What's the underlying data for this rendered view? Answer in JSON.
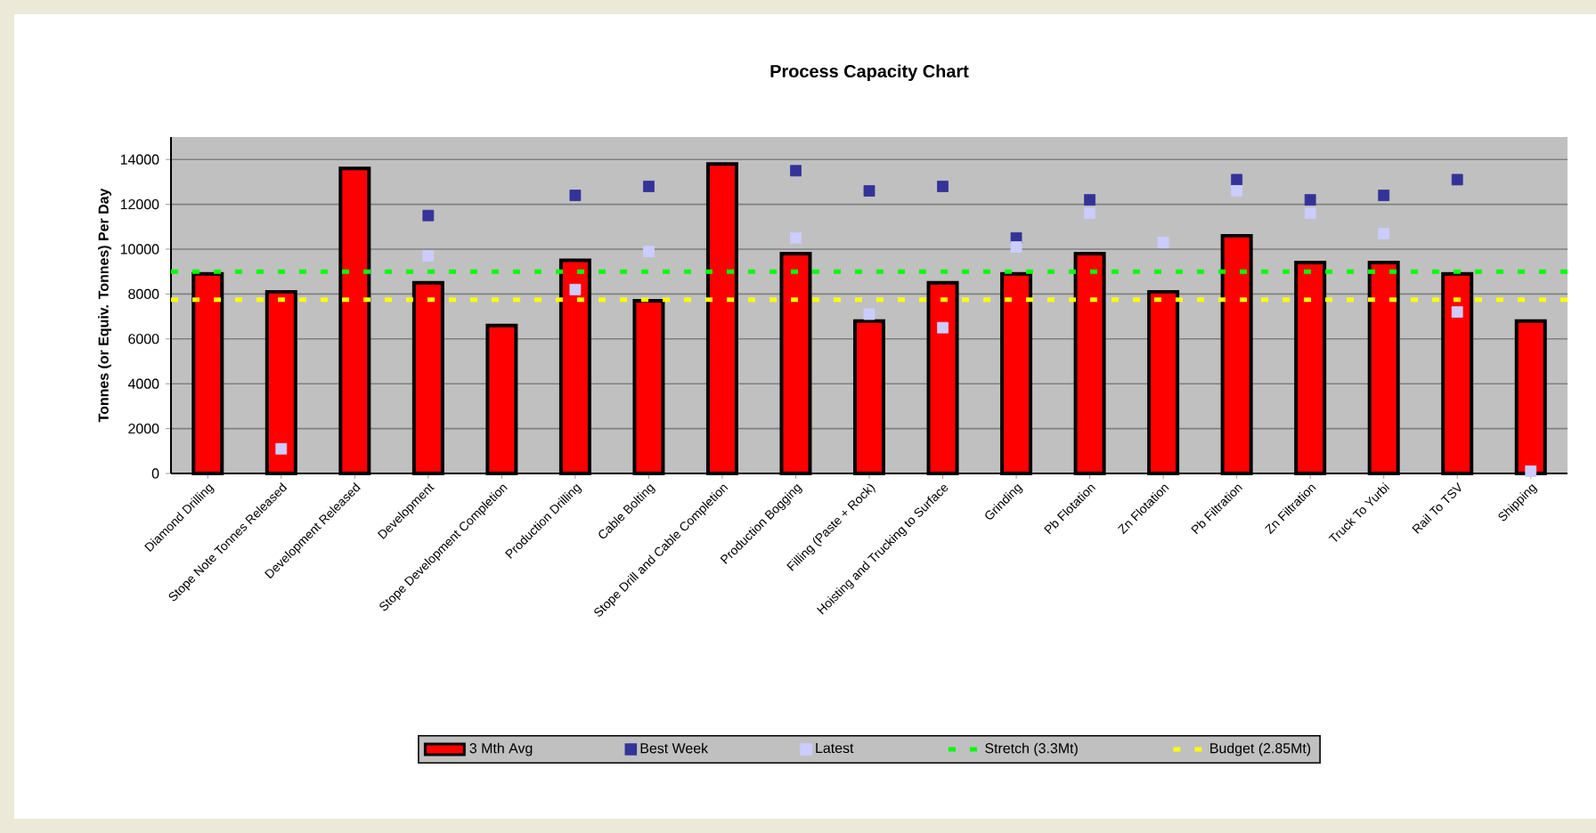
{
  "chart_data": {
    "type": "bar",
    "title": "Process Capacity Chart",
    "ylabel": "Tonnes (or Equiv. Tonnes) Per Day",
    "categories": [
      "Diamond Drilling",
      "Stope Note Tonnes Released",
      "Development Released",
      "Development",
      "Stope Development Completion",
      "Production Drilling",
      "Cable Bolting",
      "Stope Drill and Cable Completion",
      "Production Bogging",
      "Filling (Paste + Rock)",
      "Hoisting and Trucking to Surface",
      "Grinding",
      "Pb Flotation",
      "Zn Flotation",
      "Pb Filtration",
      "Zn Filtration",
      "Truck To Yurbi",
      "Rail To TSV",
      "Shipping"
    ],
    "series": [
      {
        "name": "3 Mth Avg",
        "color": "#ff0000",
        "values": [
          8900,
          8100,
          13600,
          8500,
          6600,
          9500,
          7700,
          13800,
          9800,
          6800,
          8500,
          8900,
          9800,
          8100,
          10600,
          9400,
          9400,
          8900,
          6800
        ]
      },
      {
        "name": "Best Week",
        "type": "scatter",
        "color": "#333399",
        "values": [
          null,
          null,
          null,
          11500,
          null,
          12400,
          12800,
          null,
          13500,
          12600,
          12800,
          10500,
          12200,
          null,
          13100,
          12200,
          12400,
          13100,
          null
        ]
      },
      {
        "name": "Latest",
        "type": "scatter",
        "color": "#ccccff",
        "values": [
          null,
          1100,
          null,
          9700,
          null,
          8200,
          9900,
          null,
          10500,
          7100,
          6500,
          10100,
          11600,
          10300,
          12600,
          11600,
          10700,
          7200,
          100
        ]
      }
    ],
    "ref_lines": [
      {
        "axis": "y",
        "value": 9000,
        "label": "Stretch (3.3Mt)",
        "color": "#00ff00",
        "line_style": "dashed"
      },
      {
        "axis": "y",
        "value": 7750,
        "label": "Budget (2.85Mt)",
        "color": "#ffff00",
        "line_style": "dashed"
      }
    ],
    "ylim": [
      0,
      15000
    ],
    "yticks": [
      0,
      2000,
      4000,
      6000,
      8000,
      10000,
      12000,
      14000
    ],
    "grid": "y",
    "legend": "bottom"
  }
}
